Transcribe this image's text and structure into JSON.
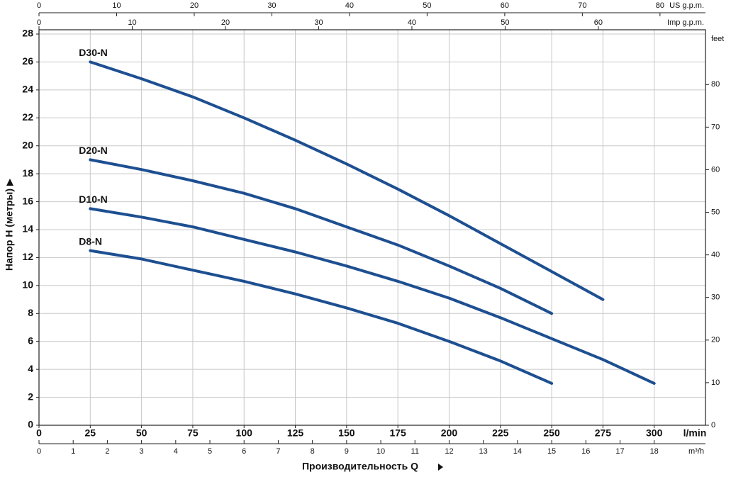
{
  "chart_data": {
    "type": "line",
    "x_label": "Производительность Q",
    "x_unit": "l/min",
    "y_label": "Напор H (метры)",
    "xlim": [
      0,
      325
    ],
    "ylim": [
      0,
      28
    ],
    "xticks": [
      0,
      25,
      50,
      75,
      100,
      125,
      150,
      175,
      200,
      225,
      250,
      275,
      300
    ],
    "yticks": [
      0,
      2,
      4,
      6,
      8,
      10,
      12,
      14,
      16,
      18,
      20,
      22,
      24,
      26,
      28
    ],
    "grid": true,
    "color": "#1d4f91",
    "series": [
      {
        "name": "D30-N",
        "x": [
          25,
          50,
          75,
          100,
          125,
          150,
          175,
          200,
          225,
          250,
          275
        ],
        "values": [
          26,
          24.8,
          23.5,
          22.0,
          20.4,
          18.7,
          16.9,
          15.0,
          13.0,
          11.0,
          9.0
        ]
      },
      {
        "name": "D20-N",
        "x": [
          25,
          50,
          75,
          100,
          125,
          150,
          175,
          200,
          225,
          250
        ],
        "values": [
          19,
          18.3,
          17.5,
          16.6,
          15.5,
          14.2,
          12.9,
          11.4,
          9.8,
          8.0
        ]
      },
      {
        "name": "D10-N",
        "x": [
          25,
          50,
          75,
          100,
          125,
          150,
          175,
          200,
          225,
          250,
          275,
          300
        ],
        "values": [
          15.5,
          14.9,
          14.2,
          13.3,
          12.4,
          11.4,
          10.3,
          9.1,
          7.7,
          6.2,
          4.7,
          3.0
        ]
      },
      {
        "name": "D8-N",
        "x": [
          25,
          50,
          75,
          100,
          125,
          150,
          175,
          200,
          225,
          250
        ],
        "values": [
          12.5,
          11.9,
          11.1,
          10.3,
          9.4,
          8.4,
          7.3,
          6.0,
          4.6,
          3.0
        ]
      }
    ],
    "x2_axes": [
      {
        "label": "US g.p.m.",
        "lim": [
          0,
          85.86
        ],
        "ticks": [
          0,
          10,
          20,
          30,
          40,
          50,
          60,
          70,
          80
        ]
      },
      {
        "label": "Imp g.p.m.",
        "lim": [
          0,
          71.49
        ],
        "ticks": [
          0,
          10,
          20,
          30,
          40,
          50,
          60
        ]
      },
      {
        "label": "m³/h",
        "lim": [
          0,
          19.5
        ],
        "ticks": [
          0,
          1,
          2,
          3,
          4,
          5,
          6,
          7,
          8,
          9,
          10,
          11,
          12,
          13,
          14,
          15,
          16,
          17,
          18
        ]
      }
    ],
    "y2label": "feet",
    "y2lim": [
      0,
      91.86
    ],
    "y2ticks": [
      0,
      10,
      20,
      30,
      40,
      50,
      60,
      70,
      80
    ]
  }
}
